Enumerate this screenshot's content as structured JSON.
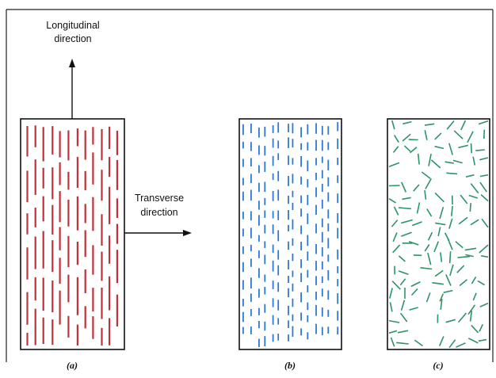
{
  "labels": {
    "longitudinal": [
      "Longitudinal",
      "direction"
    ],
    "transverse": [
      "Transverse",
      "direction"
    ]
  },
  "panels": [
    {
      "id": "a",
      "label": "(a)",
      "fiber_color": "#c0313a",
      "fiber_orientation": "aligned-continuous"
    },
    {
      "id": "b",
      "label": "(b)",
      "fiber_color": "#2f78cf",
      "fiber_orientation": "aligned-discontinuous"
    },
    {
      "id": "c",
      "label": "(c)",
      "fiber_color": "#2d9466",
      "fiber_orientation": "random-discontinuous"
    }
  ]
}
